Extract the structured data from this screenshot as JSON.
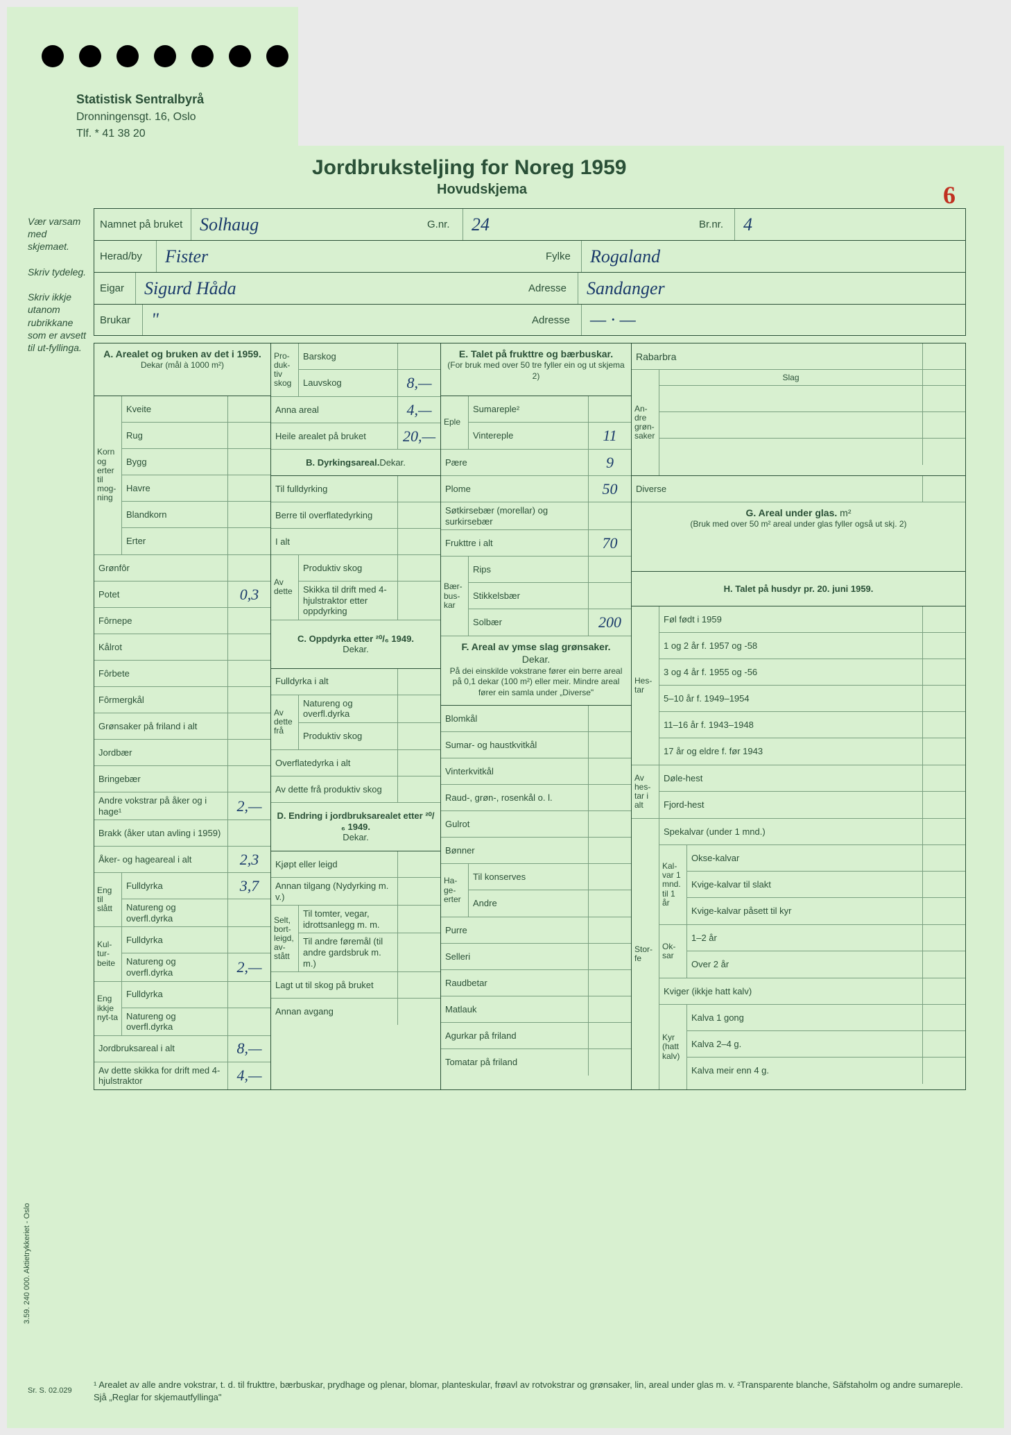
{
  "letterhead": {
    "org": "Statistisk Sentralbyrå",
    "addr": "Dronningensgt. 16, Oslo",
    "tel": "Tlf. * 41 38 20"
  },
  "title": "Jordbruksteljing for Noreg 1959",
  "subtitle": "Hovudskjema",
  "page_number": "6",
  "side_note": "Vær varsam med skjemaet.\n\nSkriv tydeleg.\n\nSkriv ikkje utanom rubrikkane som er avsett til ut-fyllinga.",
  "header": {
    "namnet_lbl": "Namnet på bruket",
    "namnet_val": "Solhaug",
    "gnr_lbl": "G.nr.",
    "gnr_val": "24",
    "brnr_lbl": "Br.nr.",
    "brnr_val": "4",
    "herad_lbl": "Herad/by",
    "herad_val": "Fister",
    "fylke_lbl": "Fylke",
    "fylke_val": "Rogaland",
    "eigar_lbl": "Eigar",
    "eigar_val": "Sigurd Håda",
    "adresse_lbl": "Adresse",
    "adresse_val": "Sandanger",
    "brukar_lbl": "Brukar",
    "brukar_val": "\"",
    "adresse2_lbl": "Adresse",
    "adresse2_val": "— · —"
  },
  "secA": {
    "title": "A. Arealet og bruken av det i 1959.",
    "sub": "Dekar (mål à 1000 m²)",
    "vlabel": "Korn og erter til mog-ning",
    "rows": [
      {
        "l": "Kveite",
        "v": ""
      },
      {
        "l": "Rug",
        "v": ""
      },
      {
        "l": "Bygg",
        "v": ""
      },
      {
        "l": "Havre",
        "v": ""
      },
      {
        "l": "Blandkorn",
        "v": ""
      },
      {
        "l": "Erter",
        "v": ""
      }
    ],
    "rows2": [
      {
        "l": "Grønfôr",
        "v": ""
      },
      {
        "l": "Potet",
        "v": "0,3"
      },
      {
        "l": "Fôrnepe",
        "v": ""
      },
      {
        "l": "Kålrot",
        "v": ""
      },
      {
        "l": "Fôrbete",
        "v": ""
      },
      {
        "l": "Fôrmergkål",
        "v": ""
      },
      {
        "l": "Grønsaker på friland i alt",
        "v": ""
      },
      {
        "l": "Jordbær",
        "v": ""
      },
      {
        "l": "Bringebær",
        "v": ""
      },
      {
        "l": "Andre vokstrar på åker og i hage¹",
        "v": "2,—"
      },
      {
        "l": "Brakk (åker utan avling i 1959)",
        "v": ""
      },
      {
        "l": "Åker- og hageareal i alt",
        "v": "2,3"
      }
    ],
    "eng_lbl": "Eng til slått",
    "eng": [
      {
        "l": "Fulldyrka",
        "v": "3,7"
      },
      {
        "l": "Natureng og overfl.dyrka",
        "v": ""
      }
    ],
    "kul_lbl": "Kul-tur-beite",
    "kul": [
      {
        "l": "Fulldyrka",
        "v": ""
      },
      {
        "l": "Natureng og overfl.dyrka",
        "v": "2,—"
      }
    ],
    "ein_lbl": "Eng ikkje nyt-ta",
    "ein": [
      {
        "l": "Fulldyrka",
        "v": ""
      },
      {
        "l": "Natureng og overfl.dyrka",
        "v": ""
      }
    ],
    "jord": {
      "l": "Jordbruksareal i alt",
      "v": "8,—"
    },
    "avdette": {
      "l": "Av dette skikka for drift med 4-hjulstraktor",
      "v": "4,—"
    }
  },
  "secAB": {
    "prod_lbl": "Pro-duk-tiv skog",
    "barskog": {
      "l": "Barskog",
      "v": ""
    },
    "lauvskog": {
      "l": "Lauvskog",
      "v": "8,—"
    },
    "anna": {
      "l": "Anna areal",
      "v": "4,—"
    },
    "heile": {
      "l": "Heile arealet på bruket",
      "v": "20,—"
    }
  },
  "secB": {
    "title": "B. Dyrkingsareal.",
    "unit": "Dekar.",
    "rows": [
      {
        "l": "Til fulldyrking",
        "v": ""
      },
      {
        "l": "Berre til overflatedyrking",
        "v": ""
      },
      {
        "l": "I alt",
        "v": ""
      }
    ],
    "av_lbl": "Av dette",
    "av": [
      {
        "l": "Produktiv skog",
        "v": ""
      },
      {
        "l": "Skikka til drift med 4-hjulstraktor etter oppdyrking",
        "v": ""
      }
    ]
  },
  "secC": {
    "title": "C. Oppdyrka etter ²⁰/₆ 1949.",
    "unit": "Dekar.",
    "rows": [
      {
        "l": "Fulldyrka i alt",
        "v": ""
      }
    ],
    "av_lbl": "Av dette frå",
    "av": [
      {
        "l": "Natureng og overfl.dyrka",
        "v": ""
      },
      {
        "l": "Produktiv skog",
        "v": ""
      }
    ],
    "rows2": [
      {
        "l": "Overflatedyrka i alt",
        "v": ""
      },
      {
        "l": "Av dette frå produktiv skog",
        "v": ""
      }
    ]
  },
  "secD": {
    "title": "D. Endring i jordbruksarealet etter ²⁰/₆ 1949.",
    "unit": "Dekar.",
    "rows": [
      {
        "l": "Kjøpt eller leigd",
        "v": ""
      },
      {
        "l": "Annan tilgang (Nydyrking m. v.)",
        "v": ""
      }
    ],
    "selt_lbl": "Selt, bort-leigd, av-stått",
    "selt": [
      {
        "l": "Til tomter, vegar, idrottsanlegg m. m.",
        "v": ""
      },
      {
        "l": "Til andre føremål (til andre gardsbruk m. m.)",
        "v": ""
      }
    ],
    "rows2": [
      {
        "l": "Lagt ut til skog på bruket",
        "v": ""
      },
      {
        "l": "Annan avgang",
        "v": ""
      }
    ]
  },
  "secE": {
    "title": "E. Talet på frukttre og bærbuskar.",
    "sub": "(For bruk med over 50 tre fyller ein og ut skjema 2)",
    "eple_lbl": "Eple",
    "eple": [
      {
        "l": "Sumareple²",
        "v": ""
      },
      {
        "l": "Vintereple",
        "v": "11"
      }
    ],
    "rows": [
      {
        "l": "Pære",
        "v": "9"
      },
      {
        "l": "Plome",
        "v": "50"
      },
      {
        "l": "Søtkirsebær (morellar) og surkirsebær",
        "v": ""
      },
      {
        "l": "Frukttre i alt",
        "v": "70"
      }
    ],
    "baer_lbl": "Bær-bus-kar",
    "baer": [
      {
        "l": "Rips",
        "v": ""
      },
      {
        "l": "Stikkelsbær",
        "v": ""
      },
      {
        "l": "Solbær",
        "v": "200"
      }
    ]
  },
  "secF": {
    "title": "F. Areal av ymse slag grønsaker.",
    "unit": "Dekar.",
    "sub": "På dei einskilde vokstrane fører ein berre areal på 0,1 dekar (100 m²) eller meir. Mindre areal fører ein samla under „Diverse\"",
    "rows": [
      {
        "l": "Blomkål",
        "v": ""
      },
      {
        "l": "Sumar- og haustkvitkål",
        "v": ""
      },
      {
        "l": "Vinterkvitkål",
        "v": ""
      },
      {
        "l": "Raud-, grøn-, rosenkål o. l.",
        "v": ""
      },
      {
        "l": "Gulrot",
        "v": ""
      },
      {
        "l": "Bønner",
        "v": ""
      }
    ],
    "hage_lbl": "Ha-ge-erter",
    "hage": [
      {
        "l": "Til konserves",
        "v": ""
      },
      {
        "l": "Andre",
        "v": ""
      }
    ],
    "rows2": [
      {
        "l": "Purre",
        "v": ""
      },
      {
        "l": "Selleri",
        "v": ""
      },
      {
        "l": "Raudbetar",
        "v": ""
      },
      {
        "l": "Matlauk",
        "v": ""
      },
      {
        "l": "Agurkar på friland",
        "v": ""
      },
      {
        "l": "Tomatar på friland",
        "v": ""
      }
    ]
  },
  "secFG": {
    "rab": {
      "l": "Rabarbra",
      "v": ""
    },
    "andre_lbl": "An-dre grøn-saker",
    "slag": "Slag",
    "andre": [
      {
        "l": "",
        "v": ""
      },
      {
        "l": "",
        "v": ""
      },
      {
        "l": "",
        "v": ""
      }
    ],
    "diverse": {
      "l": "Diverse",
      "v": ""
    }
  },
  "secG": {
    "title": "G. Areal under glas.",
    "unit": "m²",
    "sub": "(Bruk med over 50 m² areal under glas fyller også ut skj. 2)",
    "v": ""
  },
  "secH": {
    "title": "H. Talet på husdyr pr. 20. juni 1959.",
    "hes_lbl": "Hes-tar",
    "hes": [
      {
        "l": "Føl født i 1959",
        "v": ""
      },
      {
        "l": "1 og 2 år f. 1957 og -58",
        "v": ""
      },
      {
        "l": "3 og 4 år f. 1955 og -56",
        "v": ""
      },
      {
        "l": "5–10 år f. 1949–1954",
        "v": ""
      },
      {
        "l": "11–16 år f. 1943–1948",
        "v": ""
      },
      {
        "l": "17 år og eldre f. før 1943",
        "v": ""
      }
    ],
    "avhes_lbl": "Av hes-tar i alt",
    "avhes": [
      {
        "l": "Døle-hest",
        "v": ""
      },
      {
        "l": "Fjord-hest",
        "v": ""
      }
    ],
    "stor_lbl": "Stor-fe",
    "spe": {
      "l": "Spekalvar (under 1 mnd.)",
      "v": ""
    },
    "kal_lbl": "Kal-var 1 mnd. til 1 år",
    "kal": [
      {
        "l": "Okse-kalvar",
        "v": ""
      },
      {
        "l": "Kvige-kalvar til slakt",
        "v": ""
      },
      {
        "l": "Kvige-kalvar påsett til kyr",
        "v": ""
      }
    ],
    "ok_lbl": "Ok-sar",
    "ok": [
      {
        "l": "1–2 år",
        "v": ""
      },
      {
        "l": "Over 2 år",
        "v": ""
      }
    ],
    "kviger": {
      "l": "Kviger (ikkje hatt kalv)",
      "v": ""
    },
    "kyr_lbl": "Kyr (hatt kalv)",
    "kyr": [
      {
        "l": "Kalva 1 gong",
        "v": ""
      },
      {
        "l": "Kalva 2–4 g.",
        "v": ""
      },
      {
        "l": "Kalva meir enn 4 g.",
        "v": ""
      }
    ]
  },
  "footnote": "¹ Arealet av alle andre vokstrar, t. d. til frukttre, bærbuskar, prydhage og plenar, blomar, planteskular, frøavl av rotvokstrar og grønsaker, lin, areal under glas m. v.  ²Transparente blanche, Säfstaholm og andre sumareple. Sjå „Reglar for skjemautfyllinga\"",
  "vert_code": "3.59. 240 000. Aktietrykkeriet - Oslo",
  "sr_code": "Sr. S. 02.029",
  "colors": {
    "paper": "#d8f0d0",
    "ink": "#2a5037",
    "pen": "#1a3a6a",
    "red": "#c03020"
  }
}
